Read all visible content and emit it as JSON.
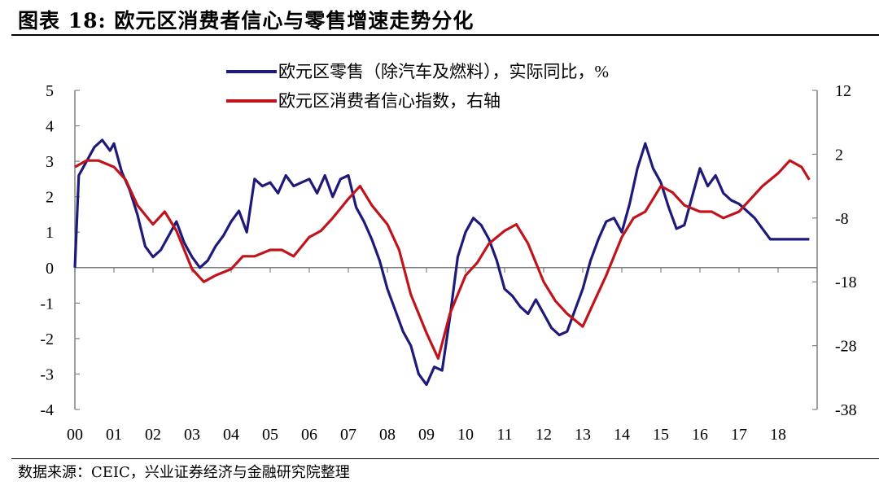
{
  "title": "图表 18:  欧元区消费者信心与零售增速走势分化",
  "source": "数据来源：CEIC，兴业证券经济与金融研究院整理",
  "colors": {
    "retail": "#1f1a7a",
    "confidence": "#c0141c",
    "axis": "#808080"
  },
  "chart_data": {
    "type": "line",
    "title": "",
    "x_tick_labels": [
      "00",
      "01",
      "02",
      "03",
      "04",
      "05",
      "06",
      "07",
      "08",
      "09",
      "10",
      "11",
      "12",
      "13",
      "14",
      "15",
      "16",
      "17",
      "18"
    ],
    "y_left": {
      "ticks": [
        "5",
        "4",
        "3",
        "2",
        "1",
        "0",
        "-1",
        "-2",
        "-3",
        "-4"
      ],
      "ylim": [
        -4,
        5
      ]
    },
    "y_right": {
      "ticks": [
        "12",
        "2",
        "-8",
        "-18",
        "-28",
        "-38"
      ],
      "ylim": [
        -38,
        12
      ]
    },
    "legend": {
      "position": "top-center",
      "entries": [
        "欧元区零售（除汽车及燃料），实际同比，%",
        "欧元区消费者信心指数，右轴"
      ]
    },
    "series": [
      {
        "name": "欧元区零售（除汽车及燃料），实际同比，%",
        "axis": "left",
        "x": [
          2000.0,
          2000.1,
          2000.3,
          2000.5,
          2000.7,
          2000.9,
          2001.0,
          2001.2,
          2001.4,
          2001.6,
          2001.8,
          2002.0,
          2002.2,
          2002.4,
          2002.6,
          2002.8,
          2003.0,
          2003.2,
          2003.4,
          2003.6,
          2003.8,
          2004.0,
          2004.2,
          2004.4,
          2004.6,
          2004.8,
          2005.0,
          2005.2,
          2005.4,
          2005.6,
          2005.8,
          2006.0,
          2006.2,
          2006.4,
          2006.6,
          2006.8,
          2007.0,
          2007.2,
          2007.4,
          2007.6,
          2007.8,
          2008.0,
          2008.2,
          2008.4,
          2008.6,
          2008.8,
          2009.0,
          2009.2,
          2009.4,
          2009.6,
          2009.8,
          2010.0,
          2010.2,
          2010.4,
          2010.6,
          2010.8,
          2011.0,
          2011.2,
          2011.4,
          2011.6,
          2011.8,
          2012.0,
          2012.2,
          2012.4,
          2012.6,
          2012.8,
          2013.0,
          2013.2,
          2013.4,
          2013.6,
          2013.8,
          2014.0,
          2014.2,
          2014.4,
          2014.6,
          2014.8,
          2015.0,
          2015.2,
          2015.4,
          2015.6,
          2015.8,
          2016.0,
          2016.2,
          2016.4,
          2016.6,
          2016.8,
          2017.0,
          2017.2,
          2017.4,
          2017.6,
          2017.8,
          2018.0,
          2018.2,
          2018.4,
          2018.6,
          2018.8
        ],
        "values": [
          0.0,
          2.6,
          3.0,
          3.4,
          3.6,
          3.3,
          3.5,
          2.7,
          2.2,
          1.5,
          0.6,
          0.3,
          0.5,
          0.9,
          1.3,
          0.7,
          0.3,
          0.0,
          0.2,
          0.6,
          0.9,
          1.3,
          1.6,
          1.0,
          2.5,
          2.3,
          2.4,
          2.1,
          2.6,
          2.3,
          2.4,
          2.5,
          2.1,
          2.6,
          2.0,
          2.5,
          2.6,
          1.7,
          1.3,
          0.8,
          0.2,
          -0.6,
          -1.2,
          -1.8,
          -2.2,
          -3.0,
          -3.3,
          -2.8,
          -2.9,
          -1.4,
          0.3,
          1.0,
          1.4,
          1.2,
          0.8,
          0.2,
          -0.6,
          -0.8,
          -1.1,
          -1.3,
          -0.9,
          -1.3,
          -1.7,
          -1.9,
          -1.8,
          -1.2,
          -0.6,
          0.2,
          0.8,
          1.3,
          1.4,
          1.0,
          1.8,
          2.8,
          3.5,
          2.8,
          2.4,
          1.7,
          1.1,
          1.2,
          2.0,
          2.8,
          2.3,
          2.6,
          2.1,
          1.9,
          1.8,
          1.6,
          1.4,
          1.1,
          0.8,
          0.8,
          0.8,
          0.8,
          0.8,
          0.8
        ]
      },
      {
        "name": "欧元区消费者信心指数，右轴",
        "axis": "right",
        "x": [
          2000.0,
          2000.3,
          2000.6,
          2001.0,
          2001.3,
          2001.6,
          2002.0,
          2002.3,
          2002.6,
          2003.0,
          2003.3,
          2003.6,
          2004.0,
          2004.3,
          2004.6,
          2005.0,
          2005.3,
          2005.6,
          2006.0,
          2006.3,
          2006.6,
          2007.0,
          2007.3,
          2007.6,
          2008.0,
          2008.3,
          2008.6,
          2009.0,
          2009.3,
          2009.6,
          2010.0,
          2010.3,
          2010.6,
          2011.0,
          2011.3,
          2011.6,
          2012.0,
          2012.3,
          2012.6,
          2013.0,
          2013.3,
          2013.6,
          2014.0,
          2014.3,
          2014.6,
          2015.0,
          2015.3,
          2015.6,
          2016.0,
          2016.3,
          2016.6,
          2017.0,
          2017.3,
          2017.6,
          2018.0,
          2018.3,
          2018.6,
          2018.8
        ],
        "values": [
          0,
          1,
          1,
          0,
          -2,
          -6,
          -9,
          -7,
          -10,
          -16,
          -18,
          -17,
          -16,
          -14,
          -14,
          -13,
          -13,
          -14,
          -11,
          -10,
          -8,
          -5,
          -3,
          -6,
          -9,
          -13,
          -20,
          -26,
          -30,
          -23,
          -17,
          -15,
          -12,
          -10,
          -9,
          -12,
          -18,
          -21,
          -23,
          -25,
          -21,
          -17,
          -11,
          -8,
          -7,
          -3,
          -4,
          -6,
          -7,
          -7,
          -8,
          -7,
          -5,
          -3,
          -1,
          1,
          0,
          -2
        ]
      }
    ]
  }
}
